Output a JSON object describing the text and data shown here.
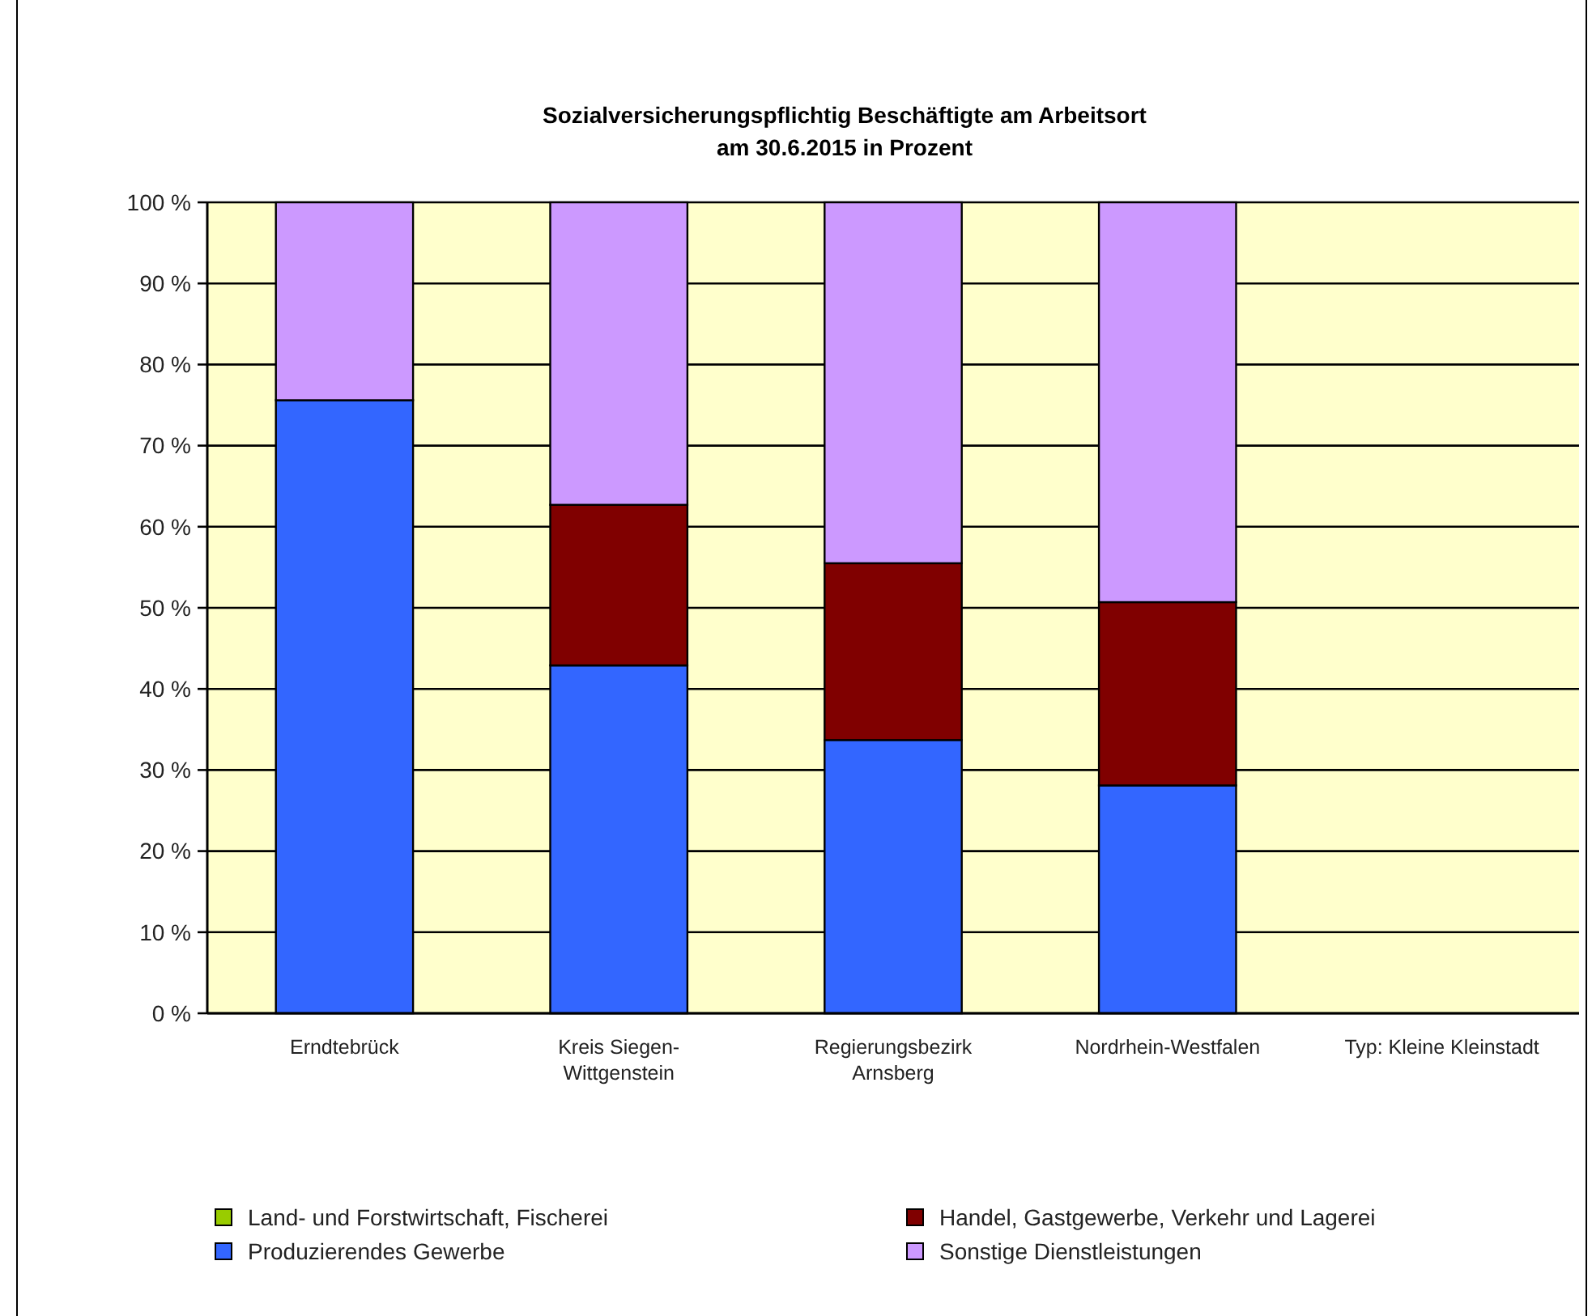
{
  "chart_data": {
    "type": "bar",
    "title": "Sozialversicherungspflichtig Beschäftigte am Arbeitsort\nam 30.6.2015 in Prozent",
    "categories": [
      "Erndtebrück",
      "Kreis Siegen-Wittgenstein",
      "Regierungsbezirk Arnsberg",
      "Nordrhein-Westfalen",
      "Typ: Kleine Kleinstadt"
    ],
    "stacked": true,
    "series": [
      {
        "name": "Land- und Forstwirtschaft, Fischerei",
        "color": "#99cc00",
        "values": [
          0,
          0,
          0,
          null,
          null
        ]
      },
      {
        "name": "Produzierendes Gewerbe",
        "color": "#3366ff",
        "values": [
          75.6,
          42.9,
          33.7,
          28.1,
          null
        ]
      },
      {
        "name": "Handel, Gastgewerbe, Verkehr und Lagerei",
        "color": "#800000",
        "values": [
          null,
          19.8,
          21.8,
          22.6,
          null
        ]
      },
      {
        "name": "Sonstige Dienstleistungen",
        "color": "#cc99ff",
        "values": [
          24.4,
          37.3,
          44.5,
          49.3,
          null
        ]
      }
    ],
    "ylim": [
      0,
      100
    ],
    "yticks": [
      {
        "value": 0,
        "label": "0 %"
      },
      {
        "value": 10,
        "label": "10 %"
      },
      {
        "value": 20,
        "label": "20 %"
      },
      {
        "value": 30,
        "label": "30 %"
      },
      {
        "value": 40,
        "label": "40 %"
      },
      {
        "value": 50,
        "label": "50 %"
      },
      {
        "value": 60,
        "label": "60 %"
      },
      {
        "value": 70,
        "label": "70 %"
      },
      {
        "value": 80,
        "label": "80 %"
      },
      {
        "value": 90,
        "label": "90 %"
      },
      {
        "value": 100,
        "label": "100 %"
      }
    ],
    "grid": "y",
    "legend": "bottom"
  }
}
